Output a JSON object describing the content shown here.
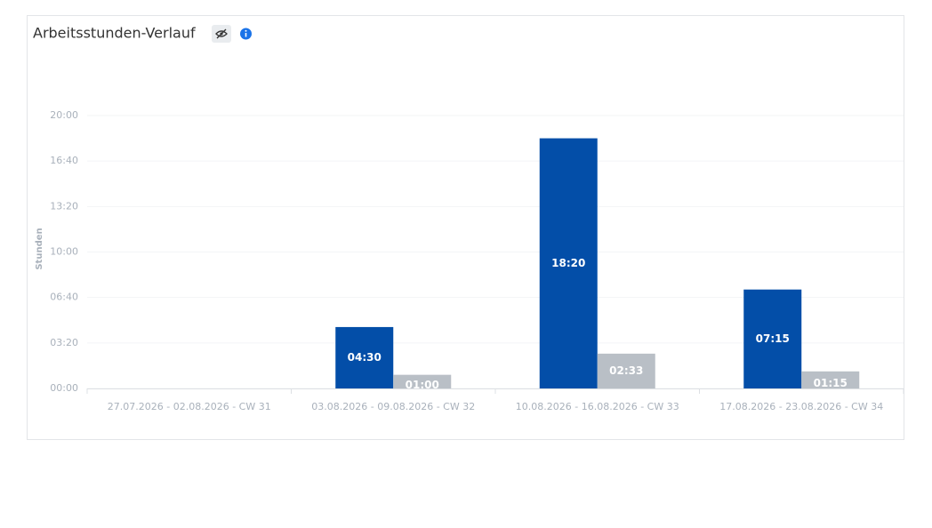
{
  "chart_data": {
    "type": "bar",
    "title": "Arbeitsstunden-Verlauf",
    "y_label": "Stunden",
    "categories": [
      "27.07.2026 - 02.08.2026 - CW 31",
      "03.08.2026 - 09.08.2026 - CW 32",
      "10.08.2026 - 16.08.2026 - CW 33",
      "17.08.2026 - 23.08.2026 - CW 34"
    ],
    "series": [
      {
        "color": "#034ea8",
        "values": [
          null,
          4.5,
          18.333333,
          7.25
        ],
        "value_labels": [
          null,
          "04:30",
          "18:20",
          "07:15"
        ]
      },
      {
        "color": "#b9bfc6",
        "values": [
          null,
          1,
          2.55,
          1.25
        ],
        "value_labels": [
          null,
          "01:00",
          "02:33",
          "01:15"
        ]
      }
    ],
    "ylim": [
      0,
      20
    ],
    "yticks": [
      {
        "value": 0,
        "label": "00:00"
      },
      {
        "value": 3.333333,
        "label": "03:20"
      },
      {
        "value": 6.666667,
        "label": "06:40"
      },
      {
        "value": 10,
        "label": "10:00"
      },
      {
        "value": 13.333333,
        "label": "13:20"
      },
      {
        "value": 16.666667,
        "label": "16:40"
      },
      {
        "value": 20,
        "label": "20:00"
      }
    ],
    "grid": true
  }
}
